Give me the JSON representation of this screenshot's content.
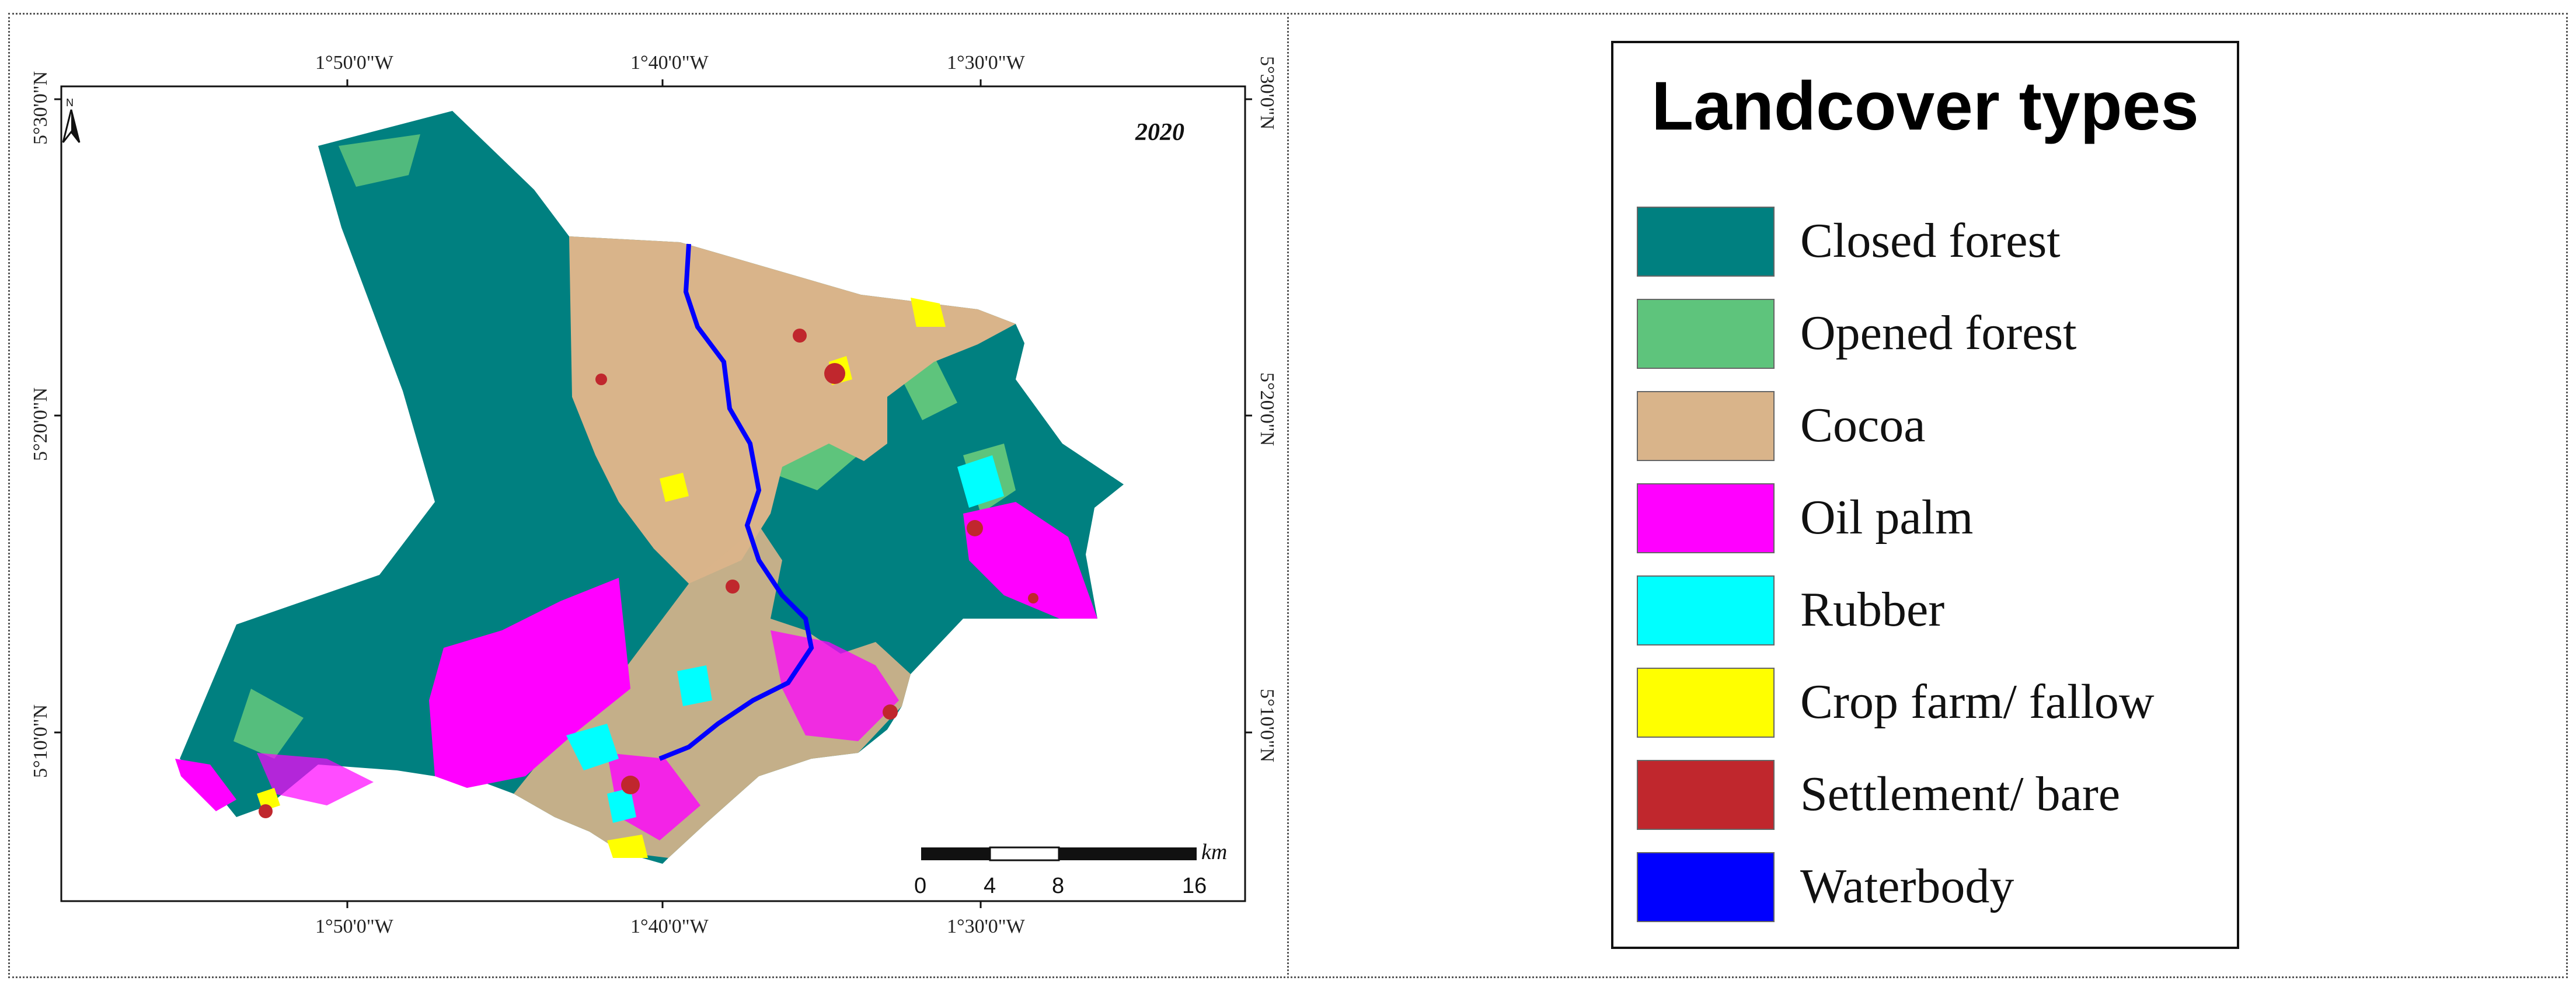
{
  "map": {
    "year": "2020",
    "top_ticks": [
      "1°50'0\"W",
      "1°40'0\"W",
      "1°30'0\"W"
    ],
    "bottom_ticks": [
      "1°50'0\"W",
      "1°40'0\"W",
      "1°30'0\"W"
    ],
    "left_ticks": [
      "5°30'0\"N",
      "5°20'0\"N",
      "5°10'0\"N"
    ],
    "right_ticks": [
      "5°30'0\"N",
      "5°20'0\"N",
      "5°10'0\"N"
    ],
    "north_arrow_label": "N",
    "scale_bar": {
      "unit": "km",
      "ticks": [
        "0",
        "4",
        "8",
        "16"
      ]
    }
  },
  "legend": {
    "title": "Landcover types",
    "items": [
      {
        "label": "Closed forest",
        "color": "#008080"
      },
      {
        "label": "Opened forest",
        "color": "#5ec47c"
      },
      {
        "label": "Cocoa",
        "color": "#d9b48a"
      },
      {
        "label": "Oil palm",
        "color": "#ff00ff"
      },
      {
        "label": "Rubber",
        "color": "#00ffff"
      },
      {
        "label": "Crop farm/ fallow",
        "color": "#ffff00"
      },
      {
        "label": "Settlement/ bare",
        "color": "#c0272d"
      },
      {
        "label": "Waterbody",
        "color": "#0000ff"
      }
    ]
  }
}
